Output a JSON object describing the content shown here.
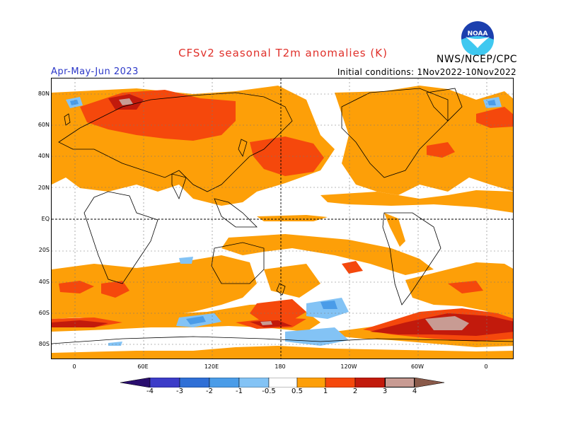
{
  "header": {
    "title": "CFSv2 seasonal T2m anomalies (K)",
    "season": "Apr-May-Jun 2023",
    "initial_conditions": "Initial conditions: 1Nov2022-10Nov2022",
    "org": "NWS/NCEP/CPC",
    "logo_text": "NOAA"
  },
  "axes": {
    "lat_labels": [
      "80N",
      "60N",
      "40N",
      "20N",
      "EQ",
      "20S",
      "40S",
      "60S",
      "80S"
    ],
    "lon_labels": [
      "0",
      "60E",
      "120E",
      "180",
      "120W",
      "60W",
      "0"
    ]
  },
  "colorbar": {
    "labels": [
      "-4",
      "-3",
      "-2",
      "-1",
      "-0.5",
      "0.5",
      "1",
      "2",
      "3",
      "4"
    ],
    "colors": [
      "#2a0e6e",
      "#3c3cc8",
      "#2f6fd6",
      "#4a9ce8",
      "#83c3f5",
      "#ffffff",
      "#fd9f08",
      "#f5480c",
      "#c21a0c",
      "#8a0b06",
      "#c89b93",
      "#8a5a4a"
    ]
  },
  "map": {
    "projection": "cylindrical equidistant, centered near 180",
    "anomaly_colors": {
      "warm_light": "#fd9f08",
      "warm_mid": "#f5480c",
      "warm_strong": "#c21a0c",
      "warm_extreme": "#c89b93",
      "cool_light": "#83c3f5",
      "cool_mid": "#4a9ce8"
    }
  }
}
